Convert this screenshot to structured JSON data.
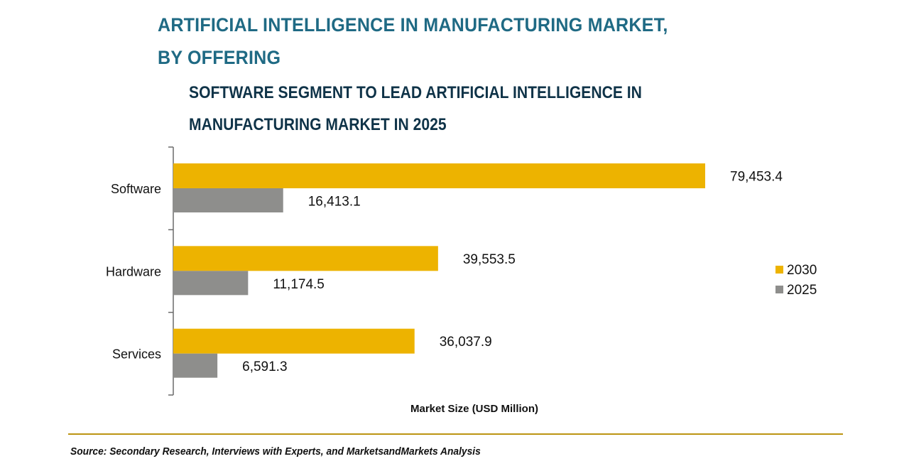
{
  "chart_data": {
    "type": "bar",
    "orientation": "horizontal",
    "title": "ARTIFICIAL INTELLIGENCE IN MANUFACTURING MARKET, BY OFFERING",
    "title_lines": [
      "ARTIFICIAL INTELLIGENCE IN MANUFACTURING MARKET,",
      "BY OFFERING"
    ],
    "subtitle": "SOFTWARE SEGMENT TO LEAD ARTIFICIAL INTELLIGENCE IN MANUFACTURING MARKET IN 2025",
    "subtitle_lines": [
      "SOFTWARE SEGMENT TO LEAD ARTIFICIAL INTELLIGENCE IN",
      "MANUFACTURING MARKET IN 2025"
    ],
    "categories": [
      "Software",
      "Hardware",
      "Services"
    ],
    "series": [
      {
        "name": "2030",
        "color": "#edb300",
        "values": [
          79453.4,
          39553.5,
          36037.9
        ],
        "labels": [
          "79,453.4",
          "39,553.5",
          "36,037.9"
        ]
      },
      {
        "name": "2025",
        "color": "#8e8e8c",
        "values": [
          16413.1,
          11174.5,
          6591.3
        ],
        "labels": [
          "16,413.1",
          "11,174.5",
          "6,591.3"
        ]
      }
    ],
    "xlabel": "Market Size (USD Million)",
    "ylabel": "",
    "xlim": [
      0,
      79453.4
    ],
    "grid": false,
    "legend": {
      "position": "right",
      "entries": [
        "2030",
        "2025"
      ]
    }
  },
  "footer": {
    "source": "Source: Secondary Research, Interviews with Experts, and MarketsandMarkets Analysis"
  },
  "colors": {
    "title": "#1f6a84",
    "subtitle": "#0f3348",
    "divider": "#bc9412"
  }
}
